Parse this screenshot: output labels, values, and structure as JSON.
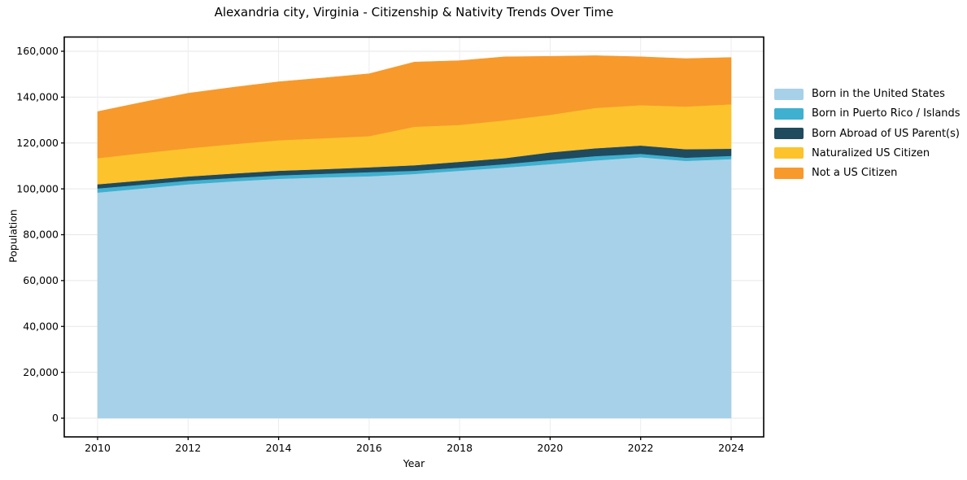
{
  "figure": {
    "title": "Alexandria city, Virginia - Citizenship & Nativity Trends Over Time",
    "xlabel": "Year",
    "ylabel": "Population"
  },
  "chart_data": {
    "type": "area",
    "stacked": true,
    "title": "Alexandria city, Virginia - Citizenship & Nativity Trends Over Time",
    "xlabel": "Year",
    "ylabel": "Population",
    "x": [
      2010,
      2011,
      2012,
      2013,
      2014,
      2015,
      2016,
      2017,
      2018,
      2019,
      2020,
      2021,
      2022,
      2023,
      2024
    ],
    "series": [
      {
        "name": "Born in the United States",
        "color": "#a7d1e8",
        "values": [
          98400,
          100200,
          102000,
          103300,
          104400,
          105000,
          105500,
          106500,
          107900,
          109300,
          110800,
          112400,
          113800,
          112200,
          113000
        ]
      },
      {
        "name": "Born in Puerto Rico / Islands",
        "color": "#3fb0cf",
        "values": [
          1800,
          1700,
          1600,
          1500,
          1500,
          1600,
          1800,
          1400,
          1400,
          1500,
          1800,
          1900,
          1500,
          1400,
          1400
        ]
      },
      {
        "name": "Born Abroad of US Parent(s)",
        "color": "#204a5e",
        "values": [
          1800,
          1800,
          1800,
          1900,
          2000,
          2000,
          2100,
          2400,
          2500,
          2600,
          3300,
          3400,
          3600,
          3700,
          3100
        ]
      },
      {
        "name": "Naturalized US Citizen",
        "color": "#fcc32d",
        "values": [
          11400,
          11900,
          12300,
          12800,
          13300,
          13500,
          13600,
          16800,
          16100,
          16500,
          16400,
          17600,
          17600,
          18600,
          19400
        ]
      },
      {
        "name": "Not a US Citizen",
        "color": "#f8992b",
        "values": [
          20300,
          22200,
          24000,
          24800,
          25500,
          26300,
          27200,
          28200,
          28000,
          27700,
          25500,
          22800,
          21100,
          20900,
          20400
        ]
      }
    ],
    "xticks": [
      "2010",
      "2012",
      "2014",
      "2016",
      "2018",
      "2020",
      "2022",
      "2024"
    ],
    "yticks": [
      "0",
      "20,000",
      "40,000",
      "60,000",
      "80,000",
      "100,000",
      "120,000",
      "140,000",
      "160,000"
    ],
    "ytick_values": [
      0,
      20000,
      40000,
      60000,
      80000,
      100000,
      120000,
      140000,
      160000
    ],
    "xtick_values": [
      2010,
      2012,
      2014,
      2016,
      2018,
      2020,
      2022,
      2024
    ],
    "ylim": [
      0,
      160000
    ],
    "xlim": [
      2010,
      2024
    ],
    "grid": true,
    "legend_position": "right"
  }
}
